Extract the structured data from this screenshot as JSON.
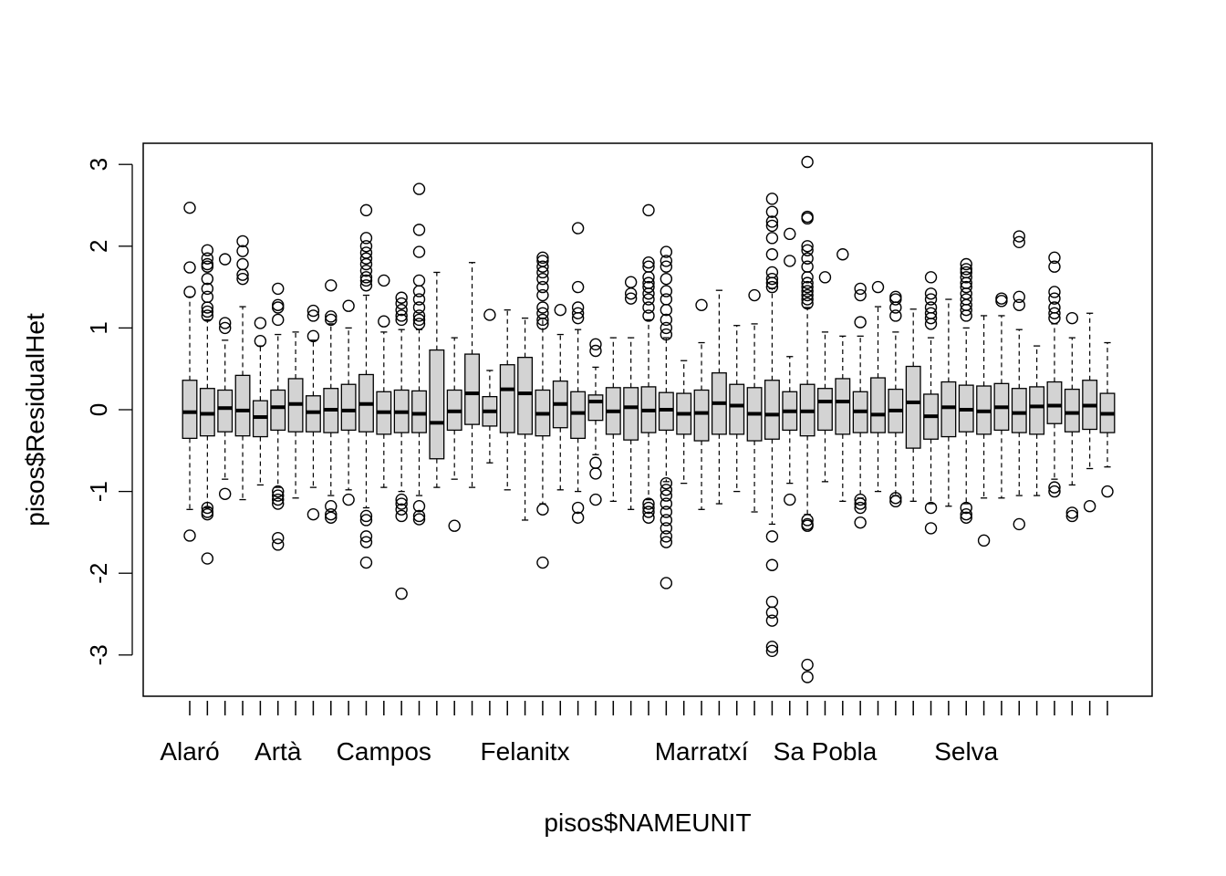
{
  "chart_data": {
    "type": "boxplot",
    "title": "",
    "xlabel": "pisos$NAMEUNIT",
    "ylabel": "pisos$ResidualHet",
    "ylim": [
      -3.5,
      3.2
    ],
    "yticks": [
      "-3",
      "-2",
      "-1",
      "0",
      "1",
      "2",
      "3"
    ],
    "ytick_values": [
      -3,
      -2,
      -1,
      0,
      1,
      2,
      3
    ],
    "x_tick_labels": [
      {
        "index": 1,
        "label": "Alaró"
      },
      {
        "index": 6,
        "label": "Artà"
      },
      {
        "index": 12,
        "label": "Campos"
      },
      {
        "index": 20,
        "label": "Felanitx"
      },
      {
        "index": 30,
        "label": "Marratxí"
      },
      {
        "index": 37,
        "label": "Sa Pobla"
      },
      {
        "index": 45,
        "label": "Selva"
      }
    ],
    "fill_color": "#d3d3d3",
    "boxes": [
      {
        "q1": -0.35,
        "median": -0.03,
        "q3": 0.36,
        "low": -1.22,
        "high": 1.38,
        "outliers": [
          2.47,
          1.74,
          1.44,
          -1.54
        ]
      },
      {
        "q1": -0.32,
        "median": -0.05,
        "q3": 0.26,
        "low": -1.2,
        "high": 1.1,
        "outliers": [
          1.95,
          1.85,
          1.78,
          1.75,
          1.6,
          1.48,
          1.38,
          1.25,
          1.2,
          1.15,
          -1.2,
          -1.25,
          -1.28,
          -1.82
        ]
      },
      {
        "q1": -0.27,
        "median": 0.02,
        "q3": 0.24,
        "low": -0.85,
        "high": 0.85,
        "outliers": [
          1.84,
          1.06,
          1.0,
          -1.03
        ]
      },
      {
        "q1": -0.32,
        "median": -0.01,
        "q3": 0.42,
        "low": -1.1,
        "high": 1.26,
        "outliers": [
          2.06,
          1.94,
          1.78,
          1.65,
          1.6
        ]
      },
      {
        "q1": -0.33,
        "median": -0.09,
        "q3": 0.11,
        "low": -0.92,
        "high": 0.78,
        "outliers": [
          1.06,
          0.84
        ]
      },
      {
        "q1": -0.25,
        "median": 0.03,
        "q3": 0.24,
        "low": -0.95,
        "high": 0.92,
        "outliers": [
          1.48,
          1.28,
          1.25,
          1.1,
          -1.0,
          -1.05,
          -1.1,
          -1.15,
          -1.57,
          -1.65
        ]
      },
      {
        "q1": -0.27,
        "median": 0.07,
        "q3": 0.38,
        "low": -1.08,
        "high": 0.95,
        "outliers": []
      },
      {
        "q1": -0.27,
        "median": -0.03,
        "q3": 0.17,
        "low": -0.95,
        "high": 0.85,
        "outliers": [
          1.21,
          1.15,
          0.9,
          -1.28
        ]
      },
      {
        "q1": -0.28,
        "median": 0.0,
        "q3": 0.26,
        "low": -1.05,
        "high": 1.05,
        "outliers": [
          1.52,
          1.14,
          1.1,
          -1.18,
          -1.28,
          -1.32
        ]
      },
      {
        "q1": -0.25,
        "median": -0.01,
        "q3": 0.31,
        "low": -0.98,
        "high": 1.0,
        "outliers": [
          1.27,
          -1.1
        ]
      },
      {
        "q1": -0.27,
        "median": 0.07,
        "q3": 0.43,
        "low": -1.2,
        "high": 1.4,
        "outliers": [
          2.44,
          2.1,
          2.0,
          1.92,
          1.85,
          1.78,
          1.7,
          1.62,
          1.58,
          1.52,
          -1.3,
          -1.35,
          -1.55,
          -1.62,
          -1.87
        ]
      },
      {
        "q1": -0.3,
        "median": -0.03,
        "q3": 0.22,
        "low": -0.95,
        "high": 0.95,
        "outliers": [
          1.58,
          1.08
        ]
      },
      {
        "q1": -0.28,
        "median": -0.03,
        "q3": 0.24,
        "low": -1.0,
        "high": 0.98,
        "outliers": [
          1.37,
          1.3,
          1.22,
          1.15,
          1.1,
          -1.1,
          -1.15,
          -1.22,
          -1.3,
          -2.25
        ]
      },
      {
        "q1": -0.28,
        "median": -0.05,
        "q3": 0.23,
        "low": -1.05,
        "high": 0.98,
        "outliers": [
          2.7,
          2.2,
          1.93,
          1.58,
          1.45,
          1.35,
          1.25,
          1.15,
          1.1,
          1.05,
          -1.18,
          -1.3,
          -1.34
        ]
      },
      {
        "q1": -0.6,
        "median": -0.16,
        "q3": 0.73,
        "low": -0.95,
        "high": 1.68,
        "outliers": []
      },
      {
        "q1": -0.25,
        "median": -0.02,
        "q3": 0.24,
        "low": -0.85,
        "high": 0.88,
        "outliers": [
          -1.42
        ]
      },
      {
        "q1": -0.18,
        "median": 0.2,
        "q3": 0.68,
        "low": -0.95,
        "high": 1.8,
        "outliers": []
      },
      {
        "q1": -0.2,
        "median": -0.02,
        "q3": 0.16,
        "low": -0.65,
        "high": 0.48,
        "outliers": [
          1.16
        ]
      },
      {
        "q1": -0.28,
        "median": 0.25,
        "q3": 0.55,
        "low": -0.98,
        "high": 1.22,
        "outliers": []
      },
      {
        "q1": -0.3,
        "median": 0.2,
        "q3": 0.64,
        "low": -1.35,
        "high": 1.12,
        "outliers": []
      },
      {
        "q1": -0.32,
        "median": -0.05,
        "q3": 0.24,
        "low": -1.15,
        "high": 1.12,
        "outliers": [
          1.86,
          1.82,
          1.75,
          1.68,
          1.6,
          1.5,
          1.4,
          1.25,
          1.18,
          1.1,
          1.05,
          -1.22,
          -1.87
        ]
      },
      {
        "q1": -0.22,
        "median": 0.07,
        "q3": 0.35,
        "low": -0.98,
        "high": 0.92,
        "outliers": [
          1.22
        ]
      },
      {
        "q1": -0.35,
        "median": -0.04,
        "q3": 0.22,
        "low": -1.0,
        "high": 0.98,
        "outliers": [
          2.22,
          1.5,
          1.25,
          1.18,
          1.12,
          -1.2,
          -1.32
        ]
      },
      {
        "q1": -0.13,
        "median": 0.1,
        "q3": 0.18,
        "low": -0.55,
        "high": 0.52,
        "outliers": [
          0.8,
          0.72,
          -0.65,
          -0.78,
          -1.1
        ]
      },
      {
        "q1": -0.3,
        "median": -0.02,
        "q3": 0.27,
        "low": -1.12,
        "high": 0.88,
        "outliers": []
      },
      {
        "q1": -0.37,
        "median": 0.03,
        "q3": 0.27,
        "low": -1.22,
        "high": 0.88,
        "outliers": [
          1.56,
          1.42,
          1.36
        ]
      },
      {
        "q1": -0.28,
        "median": -0.01,
        "q3": 0.28,
        "low": -1.1,
        "high": 1.1,
        "outliers": [
          2.44,
          1.8,
          1.75,
          1.62,
          1.55,
          1.5,
          1.42,
          1.35,
          1.25,
          1.15,
          -1.15,
          -1.2,
          -1.25,
          -1.32
        ]
      },
      {
        "q1": -0.25,
        "median": 0.0,
        "q3": 0.21,
        "low": -0.88,
        "high": 0.88,
        "outliers": [
          1.93,
          1.82,
          1.75,
          1.6,
          1.45,
          1.35,
          1.22,
          1.1,
          1.0,
          0.92,
          -0.9,
          -0.98,
          -1.05,
          -1.15,
          -1.25,
          -1.35,
          -1.45,
          -1.55,
          -1.62,
          -2.12
        ]
      },
      {
        "q1": -0.3,
        "median": -0.05,
        "q3": 0.2,
        "low": -0.9,
        "high": 0.6,
        "outliers": []
      },
      {
        "q1": -0.38,
        "median": -0.04,
        "q3": 0.24,
        "low": -1.22,
        "high": 0.82,
        "outliers": [
          1.28
        ]
      },
      {
        "q1": -0.3,
        "median": 0.08,
        "q3": 0.45,
        "low": -1.15,
        "high": 1.46,
        "outliers": []
      },
      {
        "q1": -0.3,
        "median": 0.05,
        "q3": 0.31,
        "low": -1.0,
        "high": 1.03,
        "outliers": []
      },
      {
        "q1": -0.38,
        "median": -0.05,
        "q3": 0.27,
        "low": -1.25,
        "high": 1.05,
        "outliers": [
          1.4
        ]
      },
      {
        "q1": -0.36,
        "median": -0.06,
        "q3": 0.36,
        "low": -1.4,
        "high": 1.48,
        "outliers": [
          2.58,
          2.42,
          2.3,
          2.25,
          2.1,
          1.9,
          1.68,
          1.6,
          1.55,
          1.5,
          -1.55,
          -1.9,
          -2.35,
          -2.48,
          -2.58,
          -2.9,
          -2.95
        ]
      },
      {
        "q1": -0.25,
        "median": -0.02,
        "q3": 0.22,
        "low": -0.9,
        "high": 0.65,
        "outliers": [
          2.15,
          1.82,
          -1.1
        ]
      },
      {
        "q1": -0.32,
        "median": -0.02,
        "q3": 0.31,
        "low": -1.28,
        "high": 1.25,
        "outliers": [
          3.03,
          2.36,
          2.34,
          2.0,
          1.95,
          1.85,
          1.75,
          1.62,
          1.55,
          1.5,
          1.45,
          1.4,
          1.35,
          1.3,
          -1.35,
          -1.4,
          -1.42,
          -3.12,
          -3.27
        ]
      },
      {
        "q1": -0.25,
        "median": 0.1,
        "q3": 0.26,
        "low": -0.88,
        "high": 0.95,
        "outliers": [
          1.62
        ]
      },
      {
        "q1": -0.3,
        "median": 0.1,
        "q3": 0.38,
        "low": -1.12,
        "high": 0.9,
        "outliers": [
          1.9
        ]
      },
      {
        "q1": -0.28,
        "median": -0.02,
        "q3": 0.22,
        "low": -1.08,
        "high": 0.9,
        "outliers": [
          1.48,
          1.4,
          1.07,
          -1.1,
          -1.15,
          -1.2,
          -1.38
        ]
      },
      {
        "q1": -0.28,
        "median": -0.06,
        "q3": 0.39,
        "low": -1.0,
        "high": 1.26,
        "outliers": [
          1.5
        ]
      },
      {
        "q1": -0.28,
        "median": -0.01,
        "q3": 0.25,
        "low": -1.05,
        "high": 0.95,
        "outliers": [
          1.38,
          1.35,
          1.25,
          1.15,
          -1.08,
          -1.12
        ]
      },
      {
        "q1": -0.47,
        "median": 0.09,
        "q3": 0.53,
        "low": -1.12,
        "high": 1.23,
        "outliers": []
      },
      {
        "q1": -0.36,
        "median": -0.08,
        "q3": 0.19,
        "low": -1.15,
        "high": 0.88,
        "outliers": [
          1.62,
          1.42,
          1.35,
          1.25,
          1.18,
          1.12,
          1.05,
          -1.2,
          -1.45
        ]
      },
      {
        "q1": -0.33,
        "median": 0.03,
        "q3": 0.34,
        "low": -1.18,
        "high": 1.35,
        "outliers": []
      },
      {
        "q1": -0.27,
        "median": 0.0,
        "q3": 0.3,
        "low": -1.15,
        "high": 1.0,
        "outliers": [
          1.78,
          1.72,
          1.68,
          1.62,
          1.55,
          1.5,
          1.42,
          1.35,
          1.28,
          1.22,
          1.15,
          -1.2,
          -1.28,
          -1.32
        ]
      },
      {
        "q1": -0.3,
        "median": -0.02,
        "q3": 0.29,
        "low": -1.08,
        "high": 1.15,
        "outliers": [
          -1.6
        ]
      },
      {
        "q1": -0.25,
        "median": 0.03,
        "q3": 0.32,
        "low": -1.08,
        "high": 1.15,
        "outliers": [
          1.36,
          1.33
        ]
      },
      {
        "q1": -0.28,
        "median": -0.04,
        "q3": 0.26,
        "low": -1.05,
        "high": 0.98,
        "outliers": [
          2.12,
          2.05,
          1.38,
          1.28,
          -1.4
        ]
      },
      {
        "q1": -0.3,
        "median": 0.04,
        "q3": 0.28,
        "low": -1.05,
        "high": 0.78,
        "outliers": []
      },
      {
        "q1": -0.17,
        "median": 0.05,
        "q3": 0.34,
        "low": -0.85,
        "high": 1.05,
        "outliers": [
          1.86,
          1.75,
          1.44,
          1.36,
          1.25,
          1.18,
          1.12,
          -0.95,
          -1.0
        ]
      },
      {
        "q1": -0.27,
        "median": -0.04,
        "q3": 0.25,
        "low": -0.92,
        "high": 0.88,
        "outliers": [
          1.12,
          -1.26,
          -1.3
        ]
      },
      {
        "q1": -0.24,
        "median": 0.05,
        "q3": 0.36,
        "low": -0.72,
        "high": 1.18,
        "outliers": [
          -1.18
        ]
      },
      {
        "q1": -0.28,
        "median": -0.05,
        "q3": 0.2,
        "low": -0.7,
        "high": 0.82,
        "outliers": [
          -1.0
        ]
      }
    ]
  }
}
